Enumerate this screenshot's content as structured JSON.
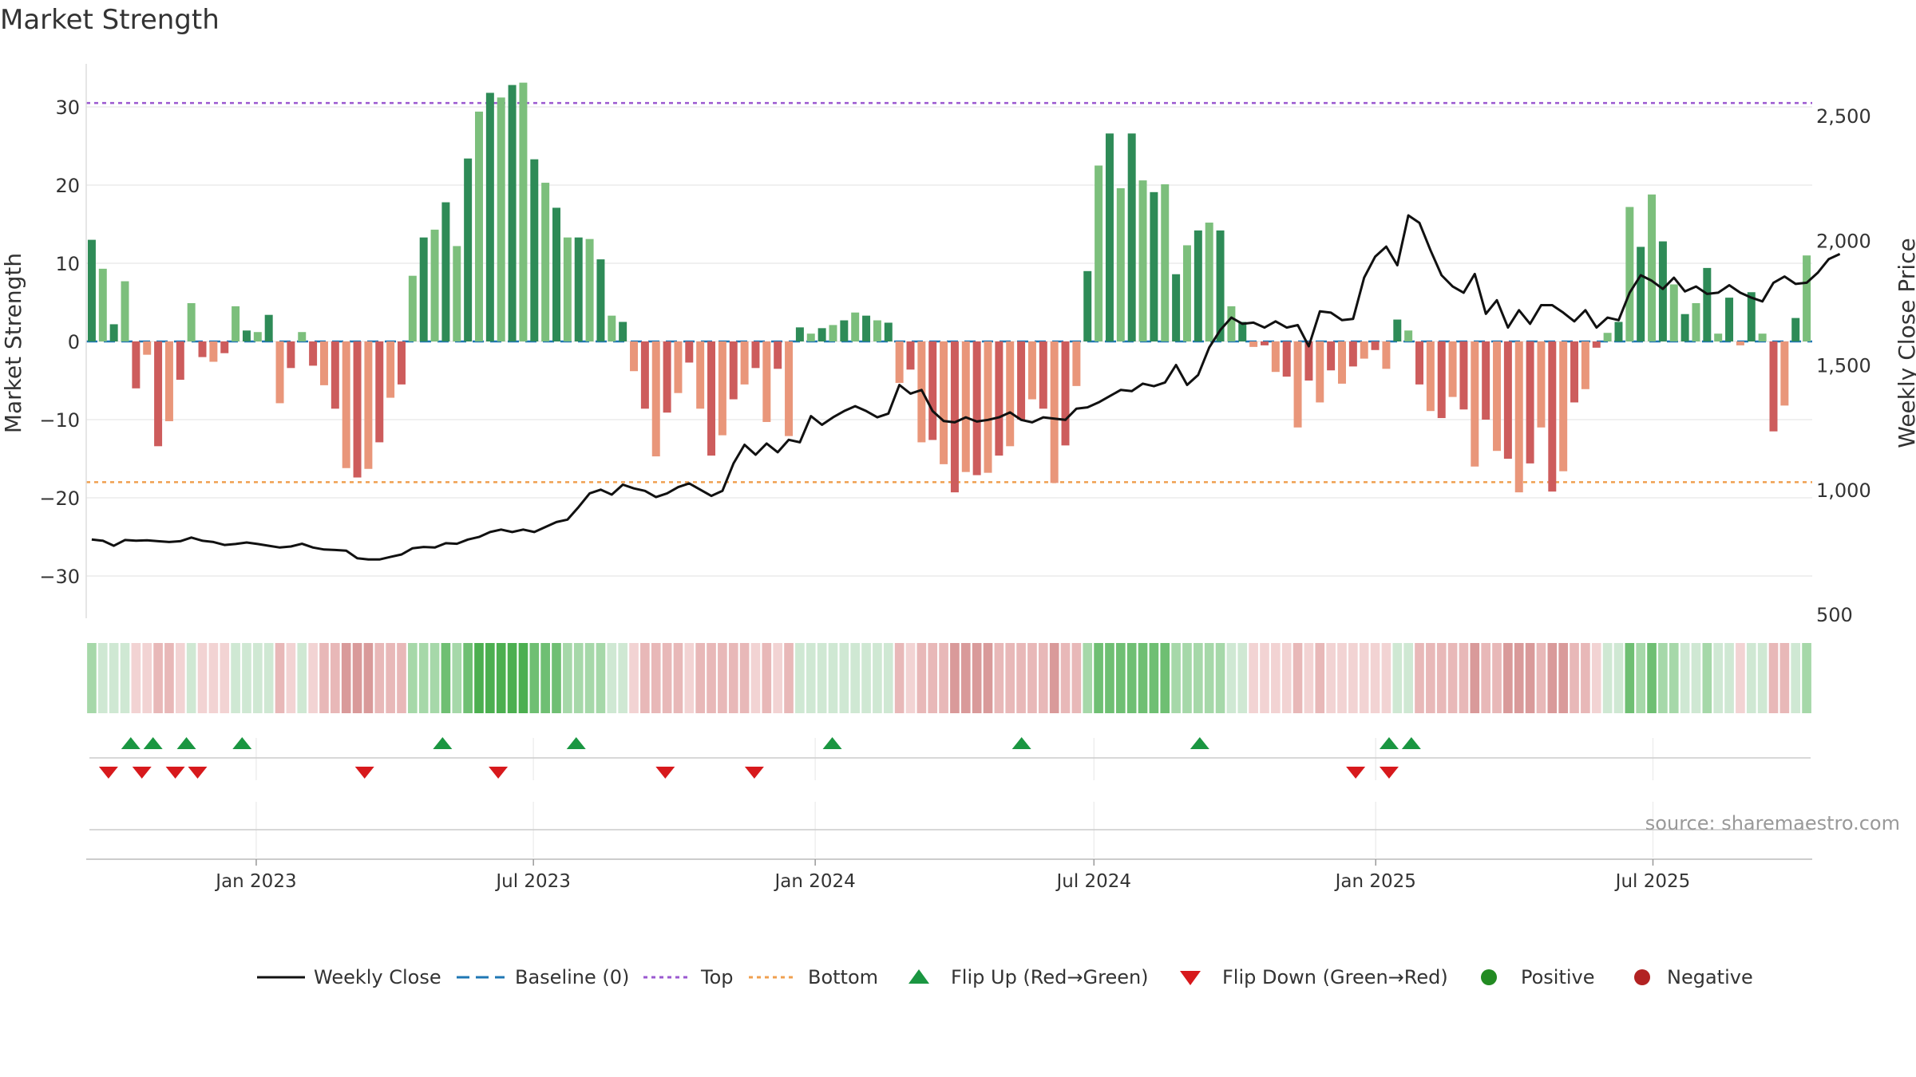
{
  "chart_data": {
    "type": "bar",
    "title": "Market Strength",
    "ylabel_left": "Market Strength",
    "ylabel_right": "Weekly Close Price",
    "source": "source: sharemaestro.com",
    "ylim_left": [
      -35,
      36
    ],
    "yticks_left": [
      {
        "v": 30,
        "label": "30"
      },
      {
        "v": 20,
        "label": "20"
      },
      {
        "v": 10,
        "label": "10"
      },
      {
        "v": 0,
        "label": "0"
      },
      {
        "v": -10,
        "label": "−10"
      },
      {
        "v": -20,
        "label": "−20"
      },
      {
        "v": -30,
        "label": "−30"
      }
    ],
    "ylim_right": [
      500,
      2700
    ],
    "yticks_right": [
      {
        "v": 2500,
        "label": "2,500"
      },
      {
        "v": 2000,
        "label": "2,000"
      },
      {
        "v": 1500,
        "label": "1,500"
      },
      {
        "v": 1000,
        "label": "1,000"
      },
      {
        "v": 500,
        "label": "500"
      }
    ],
    "x_start": "2022-09-12",
    "x_end": "2025-10-13",
    "xticks": [
      {
        "date": "2023-01-01",
        "label": "Jan 2023"
      },
      {
        "date": "2023-07-01",
        "label": "Jul 2023"
      },
      {
        "date": "2024-01-01",
        "label": "Jan 2024"
      },
      {
        "date": "2024-07-01",
        "label": "Jul 2024"
      },
      {
        "date": "2025-01-01",
        "label": "Jan 2025"
      },
      {
        "date": "2025-07-01",
        "label": "Jul 2025"
      }
    ],
    "top_threshold": 30.5,
    "bottom_threshold": -18,
    "strength": [
      13,
      9.3,
      2.2,
      7.7,
      -6,
      -1.7,
      -13.4,
      -10.2,
      -4.9,
      4.9,
      -2,
      -2.6,
      -1.5,
      4.5,
      1.4,
      1.2,
      3.4,
      -7.9,
      -3.4,
      1.2,
      -3.1,
      -5.6,
      -8.6,
      -16.2,
      -17.4,
      -16.3,
      -12.9,
      -7.2,
      -5.5,
      8.4,
      13.3,
      14.3,
      17.8,
      12.2,
      23.4,
      29.4,
      31.8,
      31.2,
      32.8,
      33.1,
      23.3,
      20.3,
      17.1,
      13.3,
      13.3,
      13.1,
      10.5,
      3.3,
      2.5,
      -3.8,
      -8.6,
      -14.7,
      -9.1,
      -6.6,
      -2.7,
      -8.6,
      -14.6,
      -12,
      -7.4,
      -5.5,
      -3.4,
      -10.3,
      -3.5,
      -12.1,
      1.8,
      1,
      1.7,
      2.1,
      2.7,
      3.7,
      3.3,
      2.7,
      2.4,
      -5.3,
      -3.6,
      -12.9,
      -12.6,
      -15.7,
      -19.3,
      -16.7,
      -17.1,
      -16.8,
      -14.6,
      -13.4,
      -10,
      -7.4,
      -8.6,
      -18.1,
      -13.3,
      -5.7,
      9,
      22.5,
      26.6,
      19.6,
      26.6,
      20.6,
      19.1,
      20.1,
      8.6,
      12.3,
      14.2,
      15.2,
      14.2,
      4.5,
      2.5,
      -0.7,
      -0.5,
      -3.9,
      -4.5,
      -11,
      -5,
      -7.8,
      -3.7,
      -5.4,
      -3.2,
      -2.2,
      -1.1,
      -3.5,
      2.8,
      1.4,
      -5.5,
      -8.9,
      -9.8,
      -7.1,
      -8.7,
      -16,
      -10,
      -14,
      -15,
      -19.3,
      -15.6,
      -11,
      -19.2,
      -16.6,
      -7.8,
      -6.1,
      -0.8,
      1.1,
      2.5,
      17.2,
      12.1,
      18.8,
      12.8,
      7.3,
      3.5,
      4.9,
      9.4,
      1,
      5.6,
      -0.5,
      6.3,
      1,
      -11.5,
      -8.2,
      3,
      11
    ],
    "weekly_close": [
      800,
      795,
      775,
      798,
      795,
      797,
      793,
      790,
      793,
      808,
      795,
      790,
      778,
      782,
      788,
      782,
      775,
      768,
      772,
      783,
      768,
      760,
      758,
      755,
      725,
      720,
      720,
      730,
      740,
      765,
      770,
      768,
      785,
      783,
      800,
      810,
      830,
      840,
      830,
      840,
      830,
      850,
      870,
      880,
      930,
      985,
      1000,
      980,
      1020,
      1005,
      995,
      970,
      985,
      1010,
      1025,
      1000,
      975,
      995,
      1105,
      1180,
      1140,
      1185,
      1150,
      1200,
      1190,
      1295,
      1260,
      1290,
      1315,
      1335,
      1315,
      1290,
      1305,
      1420,
      1385,
      1400,
      1315,
      1275,
      1270,
      1290,
      1273,
      1280,
      1290,
      1310,
      1280,
      1270,
      1290,
      1285,
      1280,
      1325,
      1330,
      1350,
      1375,
      1400,
      1395,
      1425,
      1415,
      1430,
      1500,
      1420,
      1460,
      1570,
      1640,
      1690,
      1665,
      1670,
      1650,
      1675,
      1650,
      1660,
      1575,
      1715,
      1710,
      1680,
      1685,
      1850,
      1935,
      1975,
      1900,
      2100,
      2070,
      1960,
      1860,
      1815,
      1790,
      1865,
      1705,
      1760,
      1650,
      1720,
      1665,
      1740,
      1740,
      1710,
      1675,
      1720,
      1650,
      1690,
      1680,
      1790,
      1860,
      1838,
      1805,
      1850,
      1795,
      1815,
      1785,
      1790,
      1820,
      1790,
      1770,
      1755,
      1830,
      1855,
      1825,
      1830,
      1870,
      1925,
      1945
    ],
    "flip_up_weeks": [
      4,
      6,
      9,
      14,
      32,
      44,
      67,
      84,
      100,
      117,
      119
    ],
    "flip_down_weeks": [
      2,
      5,
      8,
      10,
      25,
      37,
      52,
      60,
      114,
      117
    ],
    "heat_band": [
      2,
      1,
      1,
      1,
      -1,
      -1,
      -2,
      -2,
      -1,
      1,
      -1,
      -1,
      -1,
      1,
      1,
      1,
      1,
      -2,
      -1,
      1,
      -1,
      -2,
      -2,
      -3,
      -3,
      -3,
      -2,
      -2,
      -2,
      2,
      2,
      2,
      3,
      2,
      3,
      4,
      4,
      4,
      4,
      4,
      3,
      3,
      3,
      2,
      2,
      2,
      2,
      1,
      1,
      -1,
      -2,
      -2,
      -2,
      -2,
      -1,
      -2,
      -2,
      -2,
      -2,
      -2,
      -1,
      -2,
      -1,
      -2,
      1,
      1,
      1,
      1,
      1,
      1,
      1,
      1,
      1,
      -2,
      -1,
      -2,
      -2,
      -2,
      -3,
      -3,
      -3,
      -3,
      -2,
      -2,
      -2,
      -2,
      -2,
      -3,
      -2,
      -2,
      2,
      3,
      3,
      3,
      3,
      3,
      3,
      3,
      2,
      2,
      2,
      2,
      2,
      1,
      1,
      -1,
      -1,
      -1,
      -1,
      -2,
      -1,
      -2,
      -1,
      -1,
      -1,
      -1,
      -1,
      -1,
      1,
      1,
      -2,
      -2,
      -2,
      -2,
      -2,
      -3,
      -2,
      -2,
      -3,
      -3,
      -3,
      -2,
      -3,
      -3,
      -2,
      -2,
      -1,
      1,
      1,
      3,
      2,
      3,
      2,
      2,
      1,
      1,
      2,
      1,
      1,
      -1,
      1,
      1,
      -2,
      -2,
      1,
      2
    ],
    "legend": [
      "Weekly Close",
      "Baseline (0)",
      "Top",
      "Bottom",
      "Flip Up (Red→Green)",
      "Flip Down (Green→Red)",
      "Positive",
      "Negative"
    ],
    "colors": {
      "pos_dark": "#2e8b57",
      "pos_light": "#7cbf7c",
      "neg_dark": "#cd5c5c",
      "neg_light": "#e9967a",
      "price": "#111111",
      "baseline": "#1f77b4",
      "top": "#9b59d0",
      "bottom": "#f0a050",
      "flip_up": "#1a9641",
      "flip_down": "#d7191c",
      "legend_positive": "#228b22",
      "legend_negative": "#b22222"
    }
  }
}
